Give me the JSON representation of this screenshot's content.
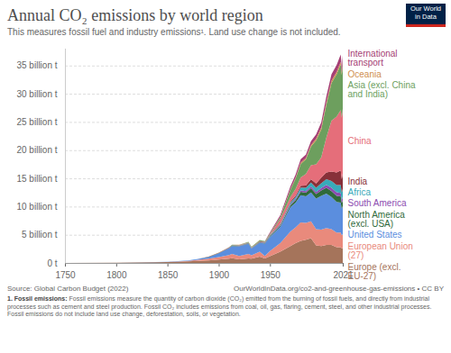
{
  "chart_data": {
    "type": "area",
    "stacked": true,
    "title": "Annual CO₂ emissions by world region",
    "subtitle": "This measures fossil fuel and industry emissions¹. Land use change is not included.",
    "logo": "Our World in Data",
    "source": "Source: Global Carbon Budget (2022)",
    "url": "OurWorldInData.org/co2-and-greenhouse-gas-emissions • CC BY",
    "footnote_label": "1. Fossil emissions:",
    "footnote": "Fossil emissions measure the quantity of carbon dioxide (CO₂) emitted from the burning of fossil fuels, and directly from industrial processes such as cement and steel production. Fossil CO₂ includes emissions from coal, oil, gas, flaring, cement, steel, and other industrial processes. Fossil emissions do not include land use change, deforestation, soils, or vegetation.",
    "grid": true,
    "x": [
      1750,
      1800,
      1850,
      1870,
      1880,
      1890,
      1900,
      1910,
      1913,
      1920,
      1929,
      1932,
      1940,
      1945,
      1950,
      1960,
      1970,
      1975,
      1980,
      1985,
      1990,
      1995,
      2000,
      2005,
      2010,
      2015,
      2019,
      2020,
      2021
    ],
    "xlim": [
      1750,
      2021
    ],
    "xticks": [
      1750,
      1800,
      1850,
      1900,
      1950,
      2021
    ],
    "ylim": [
      0,
      38
    ],
    "yticks": [
      {
        "value": 0,
        "label": "0 t"
      },
      {
        "value": 5,
        "label": "5 billion t"
      },
      {
        "value": 10,
        "label": "10 billion t"
      },
      {
        "value": 15,
        "label": "15 billion t"
      },
      {
        "value": 20,
        "label": "20 billion t"
      },
      {
        "value": 25,
        "label": "25 billion t"
      },
      {
        "value": 30,
        "label": "30 billion t"
      },
      {
        "value": 35,
        "label": "35 billion t"
      }
    ],
    "series": [
      {
        "name": "Europe (excl. EU-27)",
        "color": "#a5745b",
        "values": [
          0.009,
          0.028,
          0.14,
          0.27,
          0.35,
          0.45,
          0.6,
          0.75,
          0.85,
          0.65,
          0.8,
          0.75,
          1.1,
          0.8,
          1.2,
          2.0,
          3.0,
          3.5,
          3.9,
          4.1,
          4.4,
          3.1,
          3.0,
          3.2,
          3.2,
          2.8,
          2.8,
          2.6,
          2.6
        ]
      },
      {
        "name": "European Union (27)",
        "color": "#e98a7c",
        "values": [
          0,
          0.002,
          0.03,
          0.1,
          0.2,
          0.3,
          0.45,
          0.65,
          0.75,
          0.6,
          0.8,
          0.6,
          0.9,
          0.45,
          0.9,
          1.5,
          2.6,
          2.8,
          3.3,
          3.0,
          3.0,
          2.9,
          2.9,
          3.0,
          2.8,
          2.6,
          2.6,
          2.3,
          2.5
        ]
      },
      {
        "name": "United States",
        "color": "#5b8ede",
        "values": [
          0,
          0,
          0.02,
          0.07,
          0.15,
          0.3,
          0.66,
          1.2,
          1.4,
          1.7,
          1.8,
          1.2,
          1.6,
          2.2,
          2.5,
          2.9,
          4.3,
          4.4,
          4.8,
          4.7,
          5.1,
          5.4,
          6.0,
          6.1,
          5.7,
          5.4,
          5.3,
          4.7,
          5.0
        ]
      },
      {
        "name": "North America (excl. USA)",
        "color": "#2f6a3b",
        "values": [
          0,
          0,
          0.001,
          0.005,
          0.01,
          0.02,
          0.03,
          0.05,
          0.06,
          0.06,
          0.07,
          0.05,
          0.07,
          0.08,
          0.1,
          0.2,
          0.35,
          0.45,
          0.6,
          0.65,
          0.75,
          0.8,
          0.95,
          1.05,
          1.05,
          1.1,
          1.1,
          1.0,
          1.05
        ]
      },
      {
        "name": "South America",
        "color": "#8c4cb0",
        "values": [
          0,
          0,
          0,
          0.001,
          0.002,
          0.003,
          0.005,
          0.01,
          0.012,
          0.02,
          0.03,
          0.025,
          0.04,
          0.045,
          0.06,
          0.1,
          0.17,
          0.22,
          0.28,
          0.28,
          0.32,
          0.38,
          0.45,
          0.5,
          0.58,
          0.63,
          0.6,
          0.54,
          0.6
        ]
      },
      {
        "name": "Africa",
        "color": "#38aaba",
        "values": [
          0,
          0,
          0,
          0.001,
          0.003,
          0.006,
          0.01,
          0.02,
          0.025,
          0.03,
          0.04,
          0.035,
          0.05,
          0.06,
          0.1,
          0.14,
          0.26,
          0.33,
          0.5,
          0.6,
          0.68,
          0.74,
          0.85,
          1.0,
          1.2,
          1.3,
          1.4,
          1.3,
          1.4
        ]
      },
      {
        "name": "India",
        "color": "#883039",
        "values": [
          0,
          0,
          0,
          0.005,
          0.01,
          0.02,
          0.03,
          0.04,
          0.045,
          0.05,
          0.06,
          0.055,
          0.07,
          0.07,
          0.08,
          0.12,
          0.2,
          0.25,
          0.3,
          0.42,
          0.58,
          0.78,
          0.98,
          1.2,
          1.68,
          2.2,
          2.6,
          2.4,
          2.7
        ]
      },
      {
        "name": "China",
        "color": "#e56e7a",
        "values": [
          0,
          0,
          0,
          0,
          0.002,
          0.005,
          0.01,
          0.02,
          0.025,
          0.03,
          0.04,
          0.04,
          0.06,
          0.05,
          0.08,
          0.78,
          0.8,
          1.2,
          1.5,
          2.0,
          2.5,
          3.4,
          3.6,
          6.2,
          9.0,
          9.9,
          10.7,
          10.9,
          11.5
        ]
      },
      {
        "name": "Asia (excl. China and India)",
        "color": "#6d9f5e",
        "values": [
          0,
          0,
          0,
          0.002,
          0.005,
          0.01,
          0.02,
          0.04,
          0.05,
          0.06,
          0.1,
          0.1,
          0.15,
          0.1,
          0.15,
          0.35,
          1.3,
          1.8,
          2.4,
          2.6,
          3.3,
          4.2,
          4.9,
          5.8,
          6.7,
          7.5,
          8.1,
          7.6,
          8.0
        ]
      },
      {
        "name": "Oceania",
        "color": "#cf8f4f",
        "values": [
          0,
          0,
          0.001,
          0.003,
          0.005,
          0.007,
          0.01,
          0.015,
          0.017,
          0.02,
          0.025,
          0.02,
          0.03,
          0.035,
          0.04,
          0.07,
          0.13,
          0.17,
          0.22,
          0.25,
          0.3,
          0.33,
          0.39,
          0.42,
          0.44,
          0.45,
          0.46,
          0.44,
          0.44
        ]
      },
      {
        "name": "International transport",
        "color": "#a53e74",
        "values": [
          0,
          0,
          0,
          0,
          0,
          0,
          0,
          0,
          0,
          0,
          0,
          0,
          0,
          0,
          0.2,
          0.3,
          0.5,
          0.55,
          0.6,
          0.58,
          0.65,
          0.75,
          0.9,
          1.05,
          1.1,
          1.2,
          1.3,
          0.9,
          1.0
        ]
      }
    ]
  }
}
